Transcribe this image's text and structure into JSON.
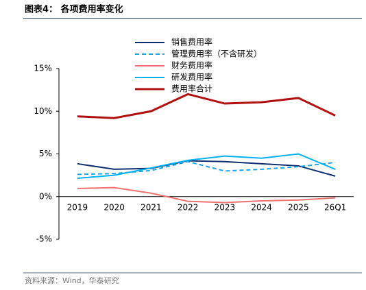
{
  "header": "图表4：  各项费用率变化",
  "source": "资料来源：Wind，华泰研究",
  "chart_data": {
    "type": "line",
    "categories": [
      "2019",
      "2020",
      "2021",
      "2022",
      "2023",
      "2024",
      "2025",
      "26Q1"
    ],
    "series": [
      {
        "name": "销售费用率",
        "color": "#0d2f6e",
        "dash": false,
        "values": [
          3.85,
          3.2,
          3.3,
          4.2,
          4.1,
          3.85,
          3.6,
          2.4
        ]
      },
      {
        "name": "管理费用率（不含研发）",
        "color": "#1aa3e8",
        "dash": true,
        "values": [
          2.6,
          2.7,
          3.05,
          4.1,
          3.0,
          3.2,
          3.5,
          4.0
        ]
      },
      {
        "name": "财务费用率",
        "color": "#f07070",
        "dash": false,
        "values": [
          0.95,
          1.05,
          0.4,
          -0.55,
          -0.7,
          -0.5,
          -0.4,
          -0.15
        ]
      },
      {
        "name": "研发费用率",
        "color": "#00b0f0",
        "dash": false,
        "values": [
          2.15,
          2.5,
          3.35,
          4.25,
          4.75,
          4.5,
          5.0,
          3.2
        ]
      },
      {
        "name": "费用率合计",
        "color": "#b01010",
        "dash": false,
        "values": [
          9.4,
          9.2,
          10.0,
          12.0,
          10.9,
          11.05,
          11.55,
          9.5
        ]
      }
    ],
    "ylim": [
      -5,
      15
    ],
    "yticks": [
      {
        "value": -5,
        "label": "-5%"
      },
      {
        "value": 0,
        "label": "0%"
      },
      {
        "value": 5,
        "label": "5%"
      },
      {
        "value": 10,
        "label": "10%"
      },
      {
        "value": 15,
        "label": "15%"
      }
    ]
  }
}
